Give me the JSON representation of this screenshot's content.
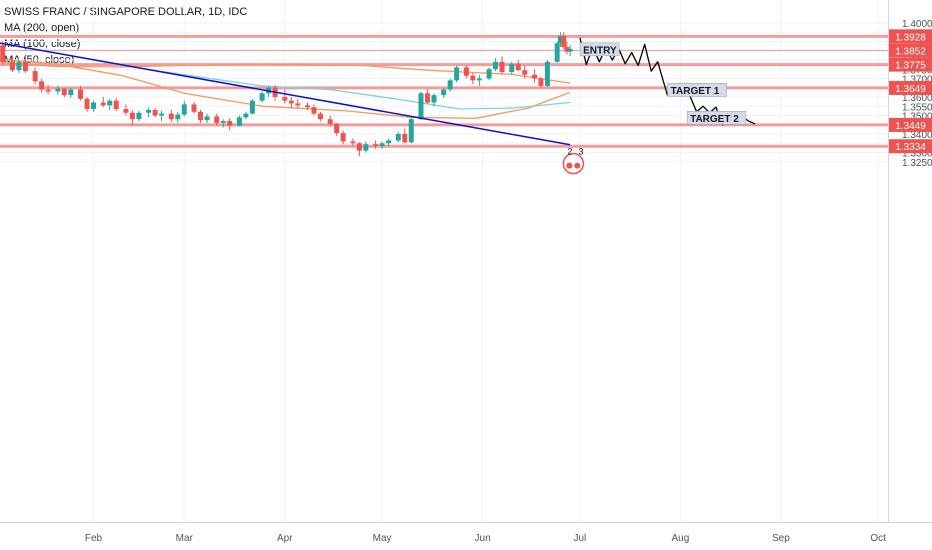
{
  "legend": {
    "title": "SWISS FRANC / SINGAPORE DOLLAR, 1D, IDC",
    "ma_labels": [
      "MA (200, open)",
      "MA (100, close)",
      "MA (50, close)"
    ]
  },
  "colors": {
    "up": "#26a69a",
    "down": "#ef5350",
    "level_line": "#f28b8b",
    "level_label_bg": "#ef5350",
    "trendline": "#1010c8",
    "ma200": "#f59a63",
    "ma100": "#7dd3dc",
    "ma50": "#f59a63",
    "projection": "#000000",
    "grid": "#f0f3fa",
    "axis_text": "#50535e",
    "annotation_bg": "#d5dbe9"
  },
  "chart_data": {
    "type": "candlestick",
    "y_axis": {
      "range": [
        1.3215,
        1.4035
      ],
      "ticks": [
        "1.3250",
        "1.3300",
        "1.3350",
        "1.3400",
        "1.3450",
        "1.3500",
        "1.3550",
        "1.3600",
        "1.3650",
        "1.3700",
        "1.3750",
        "1.3800",
        "1.3850",
        "1.3900",
        "1.3950",
        "1.4000"
      ]
    },
    "x_axis": {
      "ticks": [
        {
          "label": "Feb",
          "date": "2019-02-01"
        },
        {
          "label": "Mar",
          "date": "2019-03-01"
        },
        {
          "label": "Apr",
          "date": "2019-04-01"
        },
        {
          "label": "May",
          "date": "2019-05-01"
        },
        {
          "label": "Jun",
          "date": "2019-06-01"
        },
        {
          "label": "Jul",
          "date": "2019-07-01"
        },
        {
          "label": "Aug",
          "date": "2019-08-01"
        },
        {
          "label": "Sep",
          "date": "2019-09-01"
        },
        {
          "label": "Oct",
          "date": "2019-10-01"
        }
      ]
    },
    "levels": [
      {
        "value": 1.3928,
        "label": "1.3928",
        "thick": true
      },
      {
        "value": 1.3852,
        "label": "1.3852",
        "thick": false
      },
      {
        "value": 1.3775,
        "label": "1.3775",
        "thick": true
      },
      {
        "value": 1.3649,
        "label": "1.3649",
        "thick": true
      },
      {
        "value": 1.3449,
        "label": "1.3449",
        "thick": true
      },
      {
        "value": 1.3334,
        "label": "1.3334",
        "thick": true
      }
    ],
    "trendline": {
      "from": {
        "date": "2019-01-02",
        "price": 1.3895
      },
      "to": {
        "date": "2019-06-28",
        "price": 1.3342
      }
    },
    "ma200": [
      {
        "date": "2019-01-02",
        "price": 1.379
      },
      {
        "date": "2019-01-20",
        "price": 1.3765
      },
      {
        "date": "2019-02-10",
        "price": 1.3762
      },
      {
        "date": "2019-03-10",
        "price": 1.3775
      },
      {
        "date": "2019-04-01",
        "price": 1.3778
      },
      {
        "date": "2019-04-25",
        "price": 1.377
      },
      {
        "date": "2019-05-15",
        "price": 1.3745
      },
      {
        "date": "2019-06-10",
        "price": 1.3722
      },
      {
        "date": "2019-06-28",
        "price": 1.3675
      }
    ],
    "ma100": [
      {
        "date": "2019-01-02",
        "price": 1.3895
      },
      {
        "date": "2019-01-20",
        "price": 1.384
      },
      {
        "date": "2019-02-10",
        "price": 1.377
      },
      {
        "date": "2019-03-01",
        "price": 1.372
      },
      {
        "date": "2019-03-25",
        "price": 1.366
      },
      {
        "date": "2019-04-15",
        "price": 1.364
      },
      {
        "date": "2019-05-05",
        "price": 1.359
      },
      {
        "date": "2019-05-25",
        "price": 1.3535
      },
      {
        "date": "2019-06-10",
        "price": 1.354
      },
      {
        "date": "2019-06-28",
        "price": 1.357
      }
    ],
    "ma50": [
      {
        "date": "2019-01-02",
        "price": 1.3805
      },
      {
        "date": "2019-01-20",
        "price": 1.378
      },
      {
        "date": "2019-02-10",
        "price": 1.3715
      },
      {
        "date": "2019-03-01",
        "price": 1.362
      },
      {
        "date": "2019-03-25",
        "price": 1.355
      },
      {
        "date": "2019-04-20",
        "price": 1.3525
      },
      {
        "date": "2019-05-10",
        "price": 1.349
      },
      {
        "date": "2019-05-30",
        "price": 1.3485
      },
      {
        "date": "2019-06-15",
        "price": 1.354
      },
      {
        "date": "2019-06-28",
        "price": 1.3625
      }
    ],
    "candles": [
      {
        "date": "2019-01-02",
        "o": 1.383,
        "h": 1.3905,
        "l": 1.3795,
        "c": 1.388
      },
      {
        "date": "2019-01-04",
        "o": 1.388,
        "h": 1.39,
        "l": 1.3775,
        "c": 1.379
      },
      {
        "date": "2019-01-07",
        "o": 1.379,
        "h": 1.382,
        "l": 1.3735,
        "c": 1.3745
      },
      {
        "date": "2019-01-09",
        "o": 1.3745,
        "h": 1.38,
        "l": 1.373,
        "c": 1.379
      },
      {
        "date": "2019-01-11",
        "o": 1.379,
        "h": 1.3815,
        "l": 1.373,
        "c": 1.374
      },
      {
        "date": "2019-01-14",
        "o": 1.374,
        "h": 1.376,
        "l": 1.367,
        "c": 1.3685
      },
      {
        "date": "2019-01-16",
        "o": 1.3685,
        "h": 1.37,
        "l": 1.3625,
        "c": 1.364
      },
      {
        "date": "2019-01-18",
        "o": 1.364,
        "h": 1.3665,
        "l": 1.3615,
        "c": 1.363
      },
      {
        "date": "2019-01-21",
        "o": 1.363,
        "h": 1.366,
        "l": 1.361,
        "c": 1.3645
      },
      {
        "date": "2019-01-23",
        "o": 1.3645,
        "h": 1.365,
        "l": 1.36,
        "c": 1.361
      },
      {
        "date": "2019-01-25",
        "o": 1.361,
        "h": 1.365,
        "l": 1.3595,
        "c": 1.364
      },
      {
        "date": "2019-01-28",
        "o": 1.364,
        "h": 1.366,
        "l": 1.358,
        "c": 1.359
      },
      {
        "date": "2019-01-30",
        "o": 1.359,
        "h": 1.36,
        "l": 1.352,
        "c": 1.3535
      },
      {
        "date": "2019-02-01",
        "o": 1.3535,
        "h": 1.358,
        "l": 1.352,
        "c": 1.357
      },
      {
        "date": "2019-02-04",
        "o": 1.357,
        "h": 1.36,
        "l": 1.3545,
        "c": 1.3555
      },
      {
        "date": "2019-02-06",
        "o": 1.3555,
        "h": 1.359,
        "l": 1.353,
        "c": 1.358
      },
      {
        "date": "2019-02-08",
        "o": 1.358,
        "h": 1.3595,
        "l": 1.3525,
        "c": 1.3535
      },
      {
        "date": "2019-02-11",
        "o": 1.3535,
        "h": 1.356,
        "l": 1.35,
        "c": 1.3515
      },
      {
        "date": "2019-02-13",
        "o": 1.3515,
        "h": 1.353,
        "l": 1.3445,
        "c": 1.348
      },
      {
        "date": "2019-02-15",
        "o": 1.348,
        "h": 1.3525,
        "l": 1.347,
        "c": 1.3515
      },
      {
        "date": "2019-02-18",
        "o": 1.3515,
        "h": 1.3545,
        "l": 1.349,
        "c": 1.353
      },
      {
        "date": "2019-02-20",
        "o": 1.353,
        "h": 1.354,
        "l": 1.349,
        "c": 1.35
      },
      {
        "date": "2019-02-22",
        "o": 1.35,
        "h": 1.3525,
        "l": 1.347,
        "c": 1.351
      },
      {
        "date": "2019-02-25",
        "o": 1.351,
        "h": 1.353,
        "l": 1.3465,
        "c": 1.348
      },
      {
        "date": "2019-02-27",
        "o": 1.348,
        "h": 1.352,
        "l": 1.346,
        "c": 1.3505
      },
      {
        "date": "2019-03-01",
        "o": 1.3505,
        "h": 1.358,
        "l": 1.3495,
        "c": 1.356
      },
      {
        "date": "2019-03-04",
        "o": 1.356,
        "h": 1.3575,
        "l": 1.351,
        "c": 1.352
      },
      {
        "date": "2019-03-06",
        "o": 1.352,
        "h": 1.353,
        "l": 1.346,
        "c": 1.3475
      },
      {
        "date": "2019-03-08",
        "o": 1.3475,
        "h": 1.351,
        "l": 1.346,
        "c": 1.3495
      },
      {
        "date": "2019-03-11",
        "o": 1.3495,
        "h": 1.351,
        "l": 1.3445,
        "c": 1.346
      },
      {
        "date": "2019-03-13",
        "o": 1.346,
        "h": 1.348,
        "l": 1.3435,
        "c": 1.347
      },
      {
        "date": "2019-03-15",
        "o": 1.347,
        "h": 1.3485,
        "l": 1.342,
        "c": 1.3445
      },
      {
        "date": "2019-03-18",
        "o": 1.3445,
        "h": 1.35,
        "l": 1.344,
        "c": 1.349
      },
      {
        "date": "2019-03-20",
        "o": 1.349,
        "h": 1.352,
        "l": 1.348,
        "c": 1.351
      },
      {
        "date": "2019-03-22",
        "o": 1.351,
        "h": 1.359,
        "l": 1.3505,
        "c": 1.358
      },
      {
        "date": "2019-03-25",
        "o": 1.358,
        "h": 1.363,
        "l": 1.357,
        "c": 1.362
      },
      {
        "date": "2019-03-27",
        "o": 1.362,
        "h": 1.366,
        "l": 1.36,
        "c": 1.365
      },
      {
        "date": "2019-03-29",
        "o": 1.365,
        "h": 1.3665,
        "l": 1.358,
        "c": 1.36
      },
      {
        "date": "2019-04-01",
        "o": 1.36,
        "h": 1.364,
        "l": 1.3565,
        "c": 1.358
      },
      {
        "date": "2019-04-03",
        "o": 1.358,
        "h": 1.36,
        "l": 1.354,
        "c": 1.3565
      },
      {
        "date": "2019-04-05",
        "o": 1.3565,
        "h": 1.359,
        "l": 1.354,
        "c": 1.3555
      },
      {
        "date": "2019-04-08",
        "o": 1.3555,
        "h": 1.357,
        "l": 1.353,
        "c": 1.3545
      },
      {
        "date": "2019-04-10",
        "o": 1.3545,
        "h": 1.356,
        "l": 1.35,
        "c": 1.351
      },
      {
        "date": "2019-04-12",
        "o": 1.351,
        "h": 1.352,
        "l": 1.347,
        "c": 1.348
      },
      {
        "date": "2019-04-15",
        "o": 1.348,
        "h": 1.35,
        "l": 1.344,
        "c": 1.3455
      },
      {
        "date": "2019-04-17",
        "o": 1.3455,
        "h": 1.346,
        "l": 1.339,
        "c": 1.3405
      },
      {
        "date": "2019-04-19",
        "o": 1.3405,
        "h": 1.342,
        "l": 1.3345,
        "c": 1.336
      },
      {
        "date": "2019-04-22",
        "o": 1.336,
        "h": 1.3375,
        "l": 1.3335,
        "c": 1.335
      },
      {
        "date": "2019-04-24",
        "o": 1.335,
        "h": 1.3355,
        "l": 1.328,
        "c": 1.331
      },
      {
        "date": "2019-04-26",
        "o": 1.331,
        "h": 1.336,
        "l": 1.33,
        "c": 1.3345
      },
      {
        "date": "2019-04-29",
        "o": 1.3345,
        "h": 1.3365,
        "l": 1.332,
        "c": 1.3335
      },
      {
        "date": "2019-05-01",
        "o": 1.3335,
        "h": 1.336,
        "l": 1.332,
        "c": 1.335
      },
      {
        "date": "2019-05-03",
        "o": 1.335,
        "h": 1.3375,
        "l": 1.3335,
        "c": 1.3365
      },
      {
        "date": "2019-05-06",
        "o": 1.3365,
        "h": 1.341,
        "l": 1.3355,
        "c": 1.34
      },
      {
        "date": "2019-05-08",
        "o": 1.34,
        "h": 1.343,
        "l": 1.335,
        "c": 1.3355
      },
      {
        "date": "2019-05-10",
        "o": 1.3355,
        "h": 1.349,
        "l": 1.335,
        "c": 1.348
      },
      {
        "date": "2019-05-13",
        "o": 1.348,
        "h": 1.363,
        "l": 1.3475,
        "c": 1.362
      },
      {
        "date": "2019-05-15",
        "o": 1.362,
        "h": 1.364,
        "l": 1.356,
        "c": 1.357
      },
      {
        "date": "2019-05-17",
        "o": 1.357,
        "h": 1.362,
        "l": 1.355,
        "c": 1.361
      },
      {
        "date": "2019-05-20",
        "o": 1.361,
        "h": 1.365,
        "l": 1.3595,
        "c": 1.364
      },
      {
        "date": "2019-05-22",
        "o": 1.364,
        "h": 1.37,
        "l": 1.363,
        "c": 1.369
      },
      {
        "date": "2019-05-24",
        "o": 1.369,
        "h": 1.377,
        "l": 1.368,
        "c": 1.376
      },
      {
        "date": "2019-05-27",
        "o": 1.376,
        "h": 1.377,
        "l": 1.37,
        "c": 1.3715
      },
      {
        "date": "2019-05-29",
        "o": 1.3715,
        "h": 1.373,
        "l": 1.367,
        "c": 1.369
      },
      {
        "date": "2019-05-31",
        "o": 1.369,
        "h": 1.372,
        "l": 1.366,
        "c": 1.37
      },
      {
        "date": "2019-06-03",
        "o": 1.37,
        "h": 1.376,
        "l": 1.369,
        "c": 1.375
      },
      {
        "date": "2019-06-05",
        "o": 1.375,
        "h": 1.381,
        "l": 1.374,
        "c": 1.379
      },
      {
        "date": "2019-06-07",
        "o": 1.379,
        "h": 1.382,
        "l": 1.372,
        "c": 1.3735
      },
      {
        "date": "2019-06-10",
        "o": 1.3735,
        "h": 1.379,
        "l": 1.372,
        "c": 1.378
      },
      {
        "date": "2019-06-12",
        "o": 1.378,
        "h": 1.38,
        "l": 1.374,
        "c": 1.3745
      },
      {
        "date": "2019-06-14",
        "o": 1.3745,
        "h": 1.377,
        "l": 1.37,
        "c": 1.372
      },
      {
        "date": "2019-06-17",
        "o": 1.372,
        "h": 1.375,
        "l": 1.368,
        "c": 1.37
      },
      {
        "date": "2019-06-19",
        "o": 1.37,
        "h": 1.371,
        "l": 1.365,
        "c": 1.366
      },
      {
        "date": "2019-06-21",
        "o": 1.366,
        "h": 1.38,
        "l": 1.3655,
        "c": 1.379
      },
      {
        "date": "2019-06-24",
        "o": 1.379,
        "h": 1.39,
        "l": 1.3785,
        "c": 1.389
      },
      {
        "date": "2019-06-25",
        "o": 1.389,
        "h": 1.395,
        "l": 1.387,
        "c": 1.393
      },
      {
        "date": "2019-06-26",
        "o": 1.393,
        "h": 1.395,
        "l": 1.386,
        "c": 1.387
      },
      {
        "date": "2019-06-27",
        "o": 1.387,
        "h": 1.39,
        "l": 1.383,
        "c": 1.3845
      },
      {
        "date": "2019-06-28",
        "o": 1.3845,
        "h": 1.388,
        "l": 1.382,
        "c": 1.386
      }
    ],
    "projection": [
      {
        "date": "2019-07-01",
        "price": 1.392
      },
      {
        "date": "2019-07-03",
        "price": 1.3775
      },
      {
        "date": "2019-07-05",
        "price": 1.387
      },
      {
        "date": "2019-07-07",
        "price": 1.379
      },
      {
        "date": "2019-07-09",
        "price": 1.3865
      },
      {
        "date": "2019-07-11",
        "price": 1.38
      },
      {
        "date": "2019-07-13",
        "price": 1.386
      },
      {
        "date": "2019-07-15",
        "price": 1.378
      },
      {
        "date": "2019-07-17",
        "price": 1.384
      },
      {
        "date": "2019-07-19",
        "price": 1.377
      },
      {
        "date": "2019-07-21",
        "price": 1.3885
      },
      {
        "date": "2019-07-23",
        "price": 1.374
      },
      {
        "date": "2019-07-25",
        "price": 1.379
      },
      {
        "date": "2019-07-28",
        "price": 1.361
      },
      {
        "date": "2019-07-30",
        "price": 1.364
      },
      {
        "date": "2019-08-01",
        "price": 1.362
      },
      {
        "date": "2019-08-03",
        "price": 1.3645
      },
      {
        "date": "2019-08-06",
        "price": 1.352
      },
      {
        "date": "2019-08-08",
        "price": 1.355
      },
      {
        "date": "2019-08-10",
        "price": 1.3515
      },
      {
        "date": "2019-08-12",
        "price": 1.3545
      },
      {
        "date": "2019-08-14",
        "price": 1.345
      },
      {
        "date": "2019-08-16",
        "price": 1.35
      },
      {
        "date": "2019-08-18",
        "price": 1.348
      },
      {
        "date": "2019-08-20",
        "price": 1.3495
      },
      {
        "date": "2019-08-22",
        "price": 1.347
      },
      {
        "date": "2019-08-24",
        "price": 1.3455
      }
    ],
    "annotations": [
      {
        "label": "ENTRY",
        "date": "2019-07-02",
        "price": 1.3855
      },
      {
        "label": "TARGET 1",
        "date": "2019-07-29",
        "price": 1.3636
      },
      {
        "label": "TARGET 2",
        "date": "2019-08-04",
        "price": 1.3485
      }
    ],
    "event_marker": {
      "date": "2019-06-29",
      "price": 1.324,
      "badge_numbers": [
        "2",
        "3"
      ]
    }
  }
}
